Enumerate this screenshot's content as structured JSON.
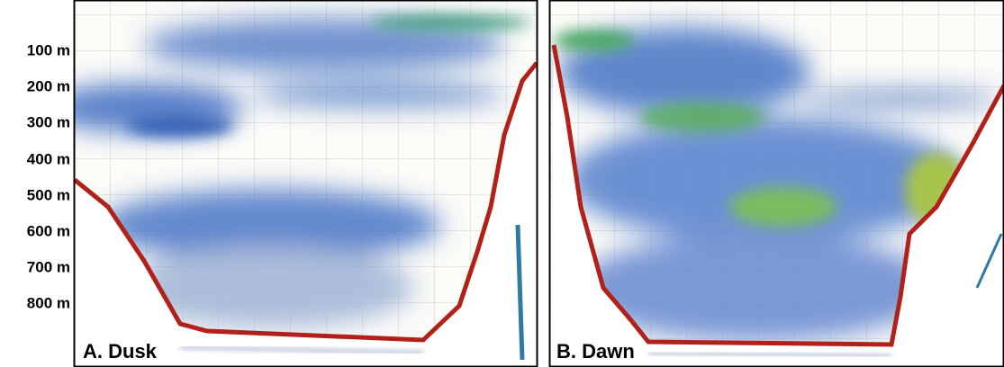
{
  "depth_labels": [
    "100 m",
    "200 m",
    "300 m",
    "400 m",
    "500 m",
    "600 m",
    "700 m",
    "800 m"
  ],
  "panels": [
    {
      "label": "A. Dusk"
    },
    {
      "label": "B. Dawn"
    }
  ]
}
